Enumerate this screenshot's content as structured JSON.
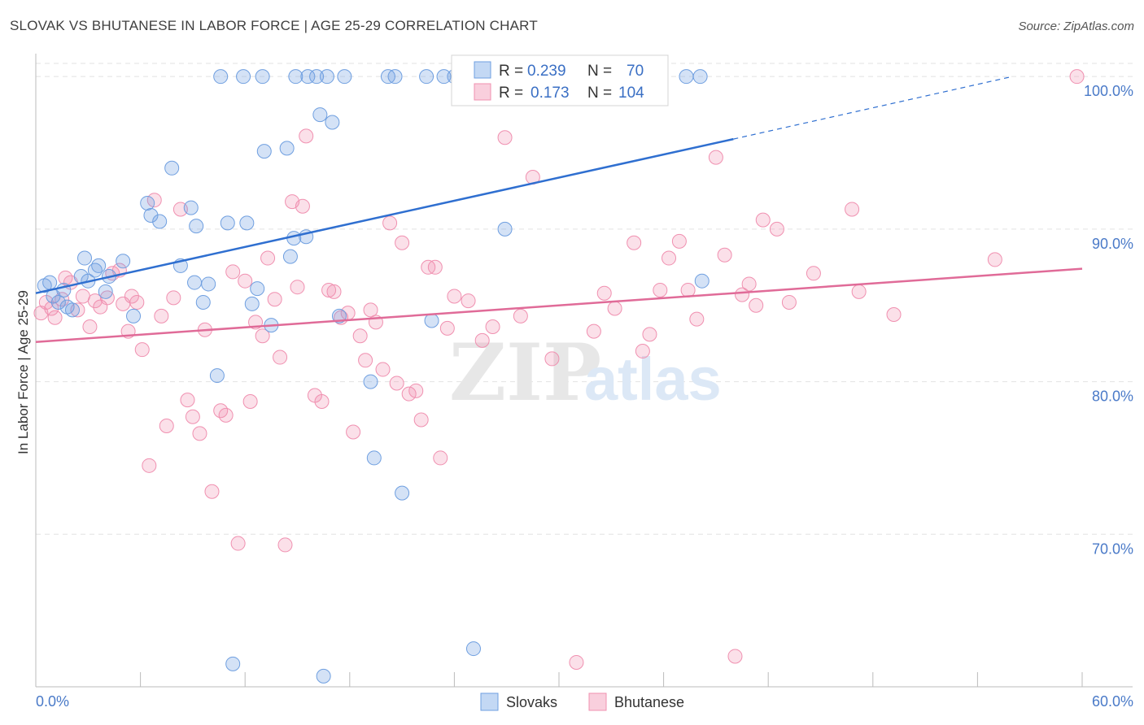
{
  "title": "SLOVAK VS BHUTANESE IN LABOR FORCE | AGE 25-29 CORRELATION CHART",
  "source": "Source: ZipAtlas.com",
  "colors": {
    "slovaks": "#6f9fe0",
    "bhutanese": "#f090b0",
    "slovaks_line": "#2f6fd0",
    "bhutanese_line": "#e06b98",
    "tick_text": "#4a7ac8"
  },
  "watermark": {
    "zip": "ZIP",
    "atlas": "atlas"
  },
  "legend": {
    "r_label": "R =",
    "n_label": "N =",
    "rows": [
      {
        "series": "Slovaks",
        "r": "0.239",
        "n": "70"
      },
      {
        "series": "Bhutanese",
        "r": "0.173",
        "n": "104"
      }
    ]
  },
  "chart_data": {
    "type": "scatter",
    "title": "SLOVAK VS BHUTANESE IN LABOR FORCE | AGE 25-29 CORRELATION CHART",
    "xlabel": "",
    "ylabel": "In Labor Force | Age 25-29",
    "xlim": [
      0,
      60
    ],
    "ylim": [
      60,
      101.5
    ],
    "x_tick_labels": [
      "0.0%",
      "60.0%"
    ],
    "y_ticks": [
      70,
      80,
      90,
      100
    ],
    "y_tick_labels": [
      "70.0%",
      "80.0%",
      "90.0%",
      "100.0%"
    ],
    "grid": true,
    "legend_position": "top-center",
    "series": [
      {
        "name": "Slovaks",
        "trend": {
          "x0": 0,
          "y0": 85.8,
          "x1": 40,
          "y1": 95.9,
          "dashed_to_x": 56,
          "dashed_to_y": 100
        },
        "points": [
          [
            0.5,
            86.3
          ],
          [
            0.8,
            86.5
          ],
          [
            1.0,
            85.6
          ],
          [
            1.3,
            85.2
          ],
          [
            1.6,
            86.0
          ],
          [
            1.8,
            84.9
          ],
          [
            2.1,
            84.7
          ],
          [
            2.6,
            86.9
          ],
          [
            2.8,
            88.1
          ],
          [
            3.0,
            86.6
          ],
          [
            3.4,
            87.3
          ],
          [
            3.6,
            87.6
          ],
          [
            4.0,
            85.9
          ],
          [
            4.2,
            86.9
          ],
          [
            5.0,
            87.9
          ],
          [
            5.6,
            84.3
          ],
          [
            6.4,
            91.7
          ],
          [
            6.6,
            90.9
          ],
          [
            7.1,
            90.5
          ],
          [
            7.8,
            94.0
          ],
          [
            8.3,
            87.6
          ],
          [
            8.9,
            91.4
          ],
          [
            9.1,
            86.5
          ],
          [
            9.2,
            90.2
          ],
          [
            9.6,
            85.2
          ],
          [
            9.9,
            86.4
          ],
          [
            10.6,
            100
          ],
          [
            10.4,
            80.4
          ],
          [
            11.0,
            90.4
          ],
          [
            11.3,
            61.5
          ],
          [
            11.9,
            100
          ],
          [
            12.1,
            90.4
          ],
          [
            12.4,
            85.1
          ],
          [
            12.7,
            86.1
          ],
          [
            13.0,
            100
          ],
          [
            13.1,
            95.1
          ],
          [
            13.5,
            83.7
          ],
          [
            14.4,
            95.3
          ],
          [
            14.6,
            88.2
          ],
          [
            14.9,
            100
          ],
          [
            14.8,
            89.4
          ],
          [
            15.5,
            89.5
          ],
          [
            15.6,
            100
          ],
          [
            16.1,
            100
          ],
          [
            16.3,
            97.5
          ],
          [
            16.5,
            60.7
          ],
          [
            16.7,
            100
          ],
          [
            17.0,
            97.0
          ],
          [
            17.4,
            84.3
          ],
          [
            17.7,
            100
          ],
          [
            19.2,
            80.0
          ],
          [
            19.4,
            75.0
          ],
          [
            20.2,
            100
          ],
          [
            20.6,
            100
          ],
          [
            21.0,
            72.7
          ],
          [
            22.4,
            100
          ],
          [
            22.7,
            84.0
          ],
          [
            23.4,
            100
          ],
          [
            24.0,
            100
          ],
          [
            25.1,
            62.5
          ],
          [
            26.3,
            100
          ],
          [
            26.9,
            90.0
          ],
          [
            28.0,
            100
          ],
          [
            29.0,
            100
          ],
          [
            30.3,
            100
          ],
          [
            31.9,
            100
          ],
          [
            34.2,
            100
          ],
          [
            37.3,
            100
          ],
          [
            38.1,
            100
          ],
          [
            38.2,
            86.6
          ]
        ]
      },
      {
        "name": "Bhutanese",
        "trend": {
          "x0": 0,
          "y0": 82.6,
          "x1": 60,
          "y1": 87.4
        },
        "points": [
          [
            0.3,
            84.5
          ],
          [
            0.6,
            85.2
          ],
          [
            0.9,
            84.8
          ],
          [
            1.1,
            84.2
          ],
          [
            1.5,
            85.4
          ],
          [
            1.7,
            86.8
          ],
          [
            2.0,
            86.5
          ],
          [
            2.4,
            84.7
          ],
          [
            2.7,
            85.6
          ],
          [
            3.1,
            83.6
          ],
          [
            3.4,
            85.3
          ],
          [
            3.7,
            84.9
          ],
          [
            4.1,
            85.5
          ],
          [
            4.4,
            87.1
          ],
          [
            4.8,
            87.3
          ],
          [
            5.0,
            85.1
          ],
          [
            5.3,
            83.3
          ],
          [
            5.5,
            85.6
          ],
          [
            5.8,
            85.2
          ],
          [
            6.1,
            82.1
          ],
          [
            6.5,
            74.5
          ],
          [
            6.8,
            91.9
          ],
          [
            7.2,
            84.3
          ],
          [
            7.5,
            77.1
          ],
          [
            7.9,
            85.5
          ],
          [
            8.3,
            91.3
          ],
          [
            8.7,
            78.8
          ],
          [
            9.0,
            77.7
          ],
          [
            9.4,
            76.6
          ],
          [
            9.7,
            83.4
          ],
          [
            10.1,
            72.8
          ],
          [
            10.6,
            78.1
          ],
          [
            10.9,
            77.8
          ],
          [
            11.3,
            87.2
          ],
          [
            11.6,
            69.4
          ],
          [
            12.0,
            86.6
          ],
          [
            12.3,
            78.7
          ],
          [
            12.6,
            83.9
          ],
          [
            13.0,
            83.0
          ],
          [
            13.3,
            88.1
          ],
          [
            13.7,
            85.4
          ],
          [
            14.0,
            81.6
          ],
          [
            14.3,
            69.3
          ],
          [
            14.7,
            91.8
          ],
          [
            15.0,
            86.2
          ],
          [
            15.3,
            91.5
          ],
          [
            15.5,
            96.1
          ],
          [
            16.0,
            79.1
          ],
          [
            16.4,
            78.7
          ],
          [
            16.8,
            86.0
          ],
          [
            17.1,
            85.9
          ],
          [
            17.5,
            84.2
          ],
          [
            17.9,
            84.5
          ],
          [
            18.2,
            76.7
          ],
          [
            18.6,
            83.0
          ],
          [
            18.9,
            81.4
          ],
          [
            19.2,
            84.7
          ],
          [
            19.5,
            83.9
          ],
          [
            19.9,
            80.8
          ],
          [
            20.3,
            90.4
          ],
          [
            20.7,
            79.9
          ],
          [
            21.0,
            89.1
          ],
          [
            21.4,
            79.2
          ],
          [
            21.8,
            79.4
          ],
          [
            22.1,
            77.5
          ],
          [
            22.5,
            87.5
          ],
          [
            22.9,
            87.5
          ],
          [
            23.2,
            75.0
          ],
          [
            23.6,
            83.5
          ],
          [
            24.0,
            85.6
          ],
          [
            24.8,
            85.3
          ],
          [
            25.6,
            82.7
          ],
          [
            26.2,
            83.6
          ],
          [
            26.9,
            96.0
          ],
          [
            27.8,
            84.3
          ],
          [
            28.5,
            93.4
          ],
          [
            29.6,
            81.5
          ],
          [
            31.0,
            61.6
          ],
          [
            32.0,
            83.3
          ],
          [
            32.6,
            85.8
          ],
          [
            33.2,
            84.8
          ],
          [
            34.3,
            89.1
          ],
          [
            34.8,
            82.0
          ],
          [
            35.2,
            83.1
          ],
          [
            35.8,
            86.0
          ],
          [
            36.3,
            88.1
          ],
          [
            36.9,
            89.2
          ],
          [
            37.4,
            86.0
          ],
          [
            37.9,
            84.1
          ],
          [
            39.0,
            94.7
          ],
          [
            39.5,
            88.3
          ],
          [
            40.1,
            62.0
          ],
          [
            40.5,
            85.7
          ],
          [
            40.9,
            86.4
          ],
          [
            41.3,
            85.0
          ],
          [
            41.7,
            90.6
          ],
          [
            42.5,
            90.0
          ],
          [
            43.2,
            85.2
          ],
          [
            44.6,
            87.1
          ],
          [
            46.8,
            91.3
          ],
          [
            47.2,
            85.9
          ],
          [
            49.2,
            84.4
          ],
          [
            55.0,
            88.0
          ],
          [
            59.7,
            100
          ]
        ]
      }
    ]
  },
  "bottom_legend": [
    {
      "label": "Slovaks"
    },
    {
      "label": "Bhutanese"
    }
  ]
}
